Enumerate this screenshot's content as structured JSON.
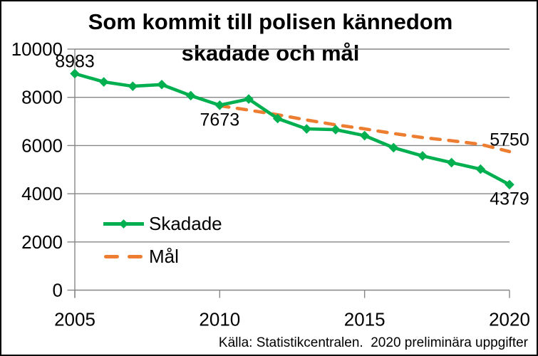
{
  "chart_data": {
    "type": "line",
    "title_lines": [
      "Som kommit till polisen kännedom",
      "skadade och mål"
    ],
    "title": "Som kommit till polisen kännedom skadade och mål",
    "source": "Källa: Statistikcentralen.  2020 preliminära uppgifter",
    "x": [
      2005,
      2006,
      2007,
      2008,
      2009,
      2010,
      2011,
      2012,
      2013,
      2014,
      2015,
      2016,
      2017,
      2018,
      2019,
      2020
    ],
    "x_ticks": [
      2005,
      2010,
      2015,
      2020
    ],
    "y_ticks": [
      0,
      2000,
      4000,
      6000,
      8000,
      10000
    ],
    "ylim": [
      0,
      10000
    ],
    "grid": true,
    "legend_position": "inside-lower-left",
    "series": [
      {
        "name": "Skadade",
        "style": "solid-diamond",
        "color": "#00B050",
        "values": [
          8983,
          8640,
          8460,
          8530,
          8070,
          7673,
          7930,
          7120,
          6690,
          6660,
          6410,
          5910,
          5570,
          5290,
          5020,
          4379
        ]
      },
      {
        "name": "Mål",
        "style": "dashed",
        "color": "#ED7D31",
        "values": [
          null,
          null,
          null,
          null,
          null,
          7650,
          7470,
          7280,
          7060,
          6860,
          6690,
          6500,
          6330,
          6200,
          6050,
          5750
        ]
      }
    ],
    "annotations": [
      {
        "text": "8983",
        "series": "Skadade",
        "year": 2005,
        "position": "above"
      },
      {
        "text": "7673",
        "series": "Skadade",
        "year": 2010,
        "position": "below"
      },
      {
        "text": "5750",
        "series": "Mål",
        "year": 2020,
        "position": "above"
      },
      {
        "text": "4379",
        "series": "Skadade",
        "year": 2020,
        "position": "below"
      }
    ],
    "colors": {
      "grid": "#868686",
      "axis": "#868686",
      "text": "#000000",
      "background": "#FFFFFF"
    }
  }
}
